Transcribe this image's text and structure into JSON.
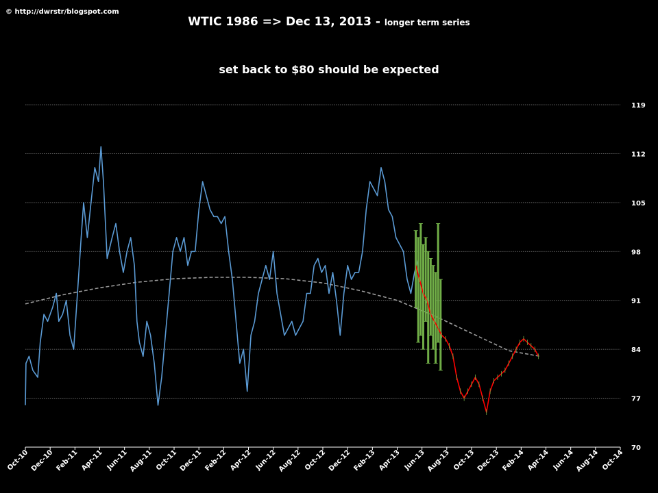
{
  "header": {
    "copyright": "© http://dwrstr/blogspot.com",
    "title_main": "WTIC 1986 => Dec 13, 2013 - ",
    "title_suffix": "longer term series",
    "subtitle": "set back to $80 should  be expected"
  },
  "colors": {
    "background": "#000000",
    "actual": "#5b9bd5",
    "projection_range": "#70ad47",
    "projection_median": "#ff0000",
    "long_term_trend": "#9a9a9a",
    "gridline": "#808080"
  },
  "chart_data": {
    "type": "line",
    "title": "WTIC 1986 => Dec 13, 2013 - longer term series",
    "subtitle": "set back to $80 should  be expected",
    "xlabel": "",
    "ylabel": "",
    "grid": true,
    "y_axis_side": "right",
    "ylim": [
      70,
      119
    ],
    "yticks": [
      70,
      77,
      84,
      91,
      98,
      105,
      112,
      119
    ],
    "xlim": [
      "2010-10",
      "2014-10"
    ],
    "xticks": [
      "Oct-10",
      "Dec-10",
      "Feb-11",
      "Apr-11",
      "Jun-11",
      "Aug-11",
      "Oct-11",
      "Dec-11",
      "Feb-12",
      "Apr-12",
      "Jun-12",
      "Aug-12",
      "Oct-12",
      "Dec-12",
      "Feb-13",
      "Apr-13",
      "Jun-13",
      "Aug-13",
      "Oct-13",
      "Dec-13",
      "Feb-14",
      "Apr-14",
      "Jun-14",
      "Aug-14",
      "Oct-14"
    ],
    "series": [
      {
        "style": "line",
        "color": "#5b9bd5",
        "x_unit": "months since Oct-10",
        "points": [
          [
            0.0,
            76
          ],
          [
            0.05,
            82
          ],
          [
            0.3,
            83
          ],
          [
            0.6,
            81
          ],
          [
            1.0,
            80
          ],
          [
            1.2,
            85
          ],
          [
            1.5,
            89
          ],
          [
            1.8,
            88
          ],
          [
            2.2,
            90
          ],
          [
            2.5,
            92
          ],
          [
            2.7,
            88
          ],
          [
            3.0,
            89
          ],
          [
            3.3,
            91
          ],
          [
            3.6,
            86
          ],
          [
            3.9,
            84
          ],
          [
            4.2,
            92
          ],
          [
            4.5,
            100
          ],
          [
            4.7,
            105
          ],
          [
            5.0,
            100
          ],
          [
            5.3,
            105
          ],
          [
            5.6,
            110
          ],
          [
            5.9,
            108
          ],
          [
            6.1,
            113
          ],
          [
            6.3,
            108
          ],
          [
            6.6,
            97
          ],
          [
            7.0,
            100
          ],
          [
            7.3,
            102
          ],
          [
            7.6,
            98
          ],
          [
            7.9,
            95
          ],
          [
            8.2,
            98
          ],
          [
            8.5,
            100
          ],
          [
            8.8,
            96
          ],
          [
            9.0,
            88
          ],
          [
            9.2,
            85
          ],
          [
            9.5,
            83
          ],
          [
            9.8,
            88
          ],
          [
            10.1,
            86
          ],
          [
            10.4,
            82
          ],
          [
            10.7,
            76
          ],
          [
            11.0,
            80
          ],
          [
            11.3,
            86
          ],
          [
            11.6,
            92
          ],
          [
            11.9,
            98
          ],
          [
            12.2,
            100
          ],
          [
            12.5,
            98
          ],
          [
            12.8,
            100
          ],
          [
            13.1,
            96
          ],
          [
            13.4,
            98
          ],
          [
            13.7,
            98
          ],
          [
            14.0,
            104
          ],
          [
            14.3,
            108
          ],
          [
            14.6,
            106
          ],
          [
            14.9,
            104
          ],
          [
            15.2,
            103
          ],
          [
            15.5,
            103
          ],
          [
            15.8,
            102
          ],
          [
            16.1,
            103
          ],
          [
            16.4,
            98
          ],
          [
            16.7,
            94
          ],
          [
            17.0,
            88
          ],
          [
            17.3,
            82
          ],
          [
            17.6,
            84
          ],
          [
            17.9,
            78
          ],
          [
            18.2,
            86
          ],
          [
            18.5,
            88
          ],
          [
            18.8,
            92
          ],
          [
            19.1,
            94
          ],
          [
            19.4,
            96
          ],
          [
            19.7,
            94
          ],
          [
            20.0,
            98
          ],
          [
            20.3,
            92
          ],
          [
            20.6,
            89
          ],
          [
            20.9,
            86
          ],
          [
            21.2,
            87
          ],
          [
            21.5,
            88
          ],
          [
            21.8,
            86
          ],
          [
            22.1,
            87
          ],
          [
            22.4,
            88
          ],
          [
            22.7,
            92
          ],
          [
            23.0,
            92
          ],
          [
            23.3,
            96
          ],
          [
            23.6,
            97
          ],
          [
            23.9,
            95
          ],
          [
            24.2,
            96
          ],
          [
            24.5,
            92
          ],
          [
            24.8,
            95
          ],
          [
            25.1,
            91
          ],
          [
            25.4,
            86
          ],
          [
            25.7,
            92
          ],
          [
            26.0,
            96
          ],
          [
            26.3,
            94
          ],
          [
            26.6,
            95
          ],
          [
            26.9,
            95
          ],
          [
            27.2,
            98
          ],
          [
            27.5,
            104
          ],
          [
            27.8,
            108
          ],
          [
            28.1,
            107
          ],
          [
            28.4,
            106
          ],
          [
            28.7,
            110
          ],
          [
            29.0,
            108
          ],
          [
            29.3,
            104
          ],
          [
            29.6,
            103
          ],
          [
            29.9,
            100
          ],
          [
            30.2,
            99
          ],
          [
            30.5,
            98
          ],
          [
            30.8,
            94
          ],
          [
            31.1,
            92
          ],
          [
            31.4,
            95
          ],
          [
            31.7,
            97
          ]
        ]
      },
      {
        "style": "range-bars",
        "color": "#70ad47",
        "x_unit": "months since Oct-10",
        "bars": [
          [
            31.5,
            90,
            101
          ],
          [
            31.7,
            85,
            100
          ],
          [
            31.9,
            86,
            102
          ],
          [
            32.1,
            84,
            99
          ],
          [
            32.3,
            88,
            100
          ],
          [
            32.5,
            82,
            98
          ],
          [
            32.7,
            86,
            97
          ],
          [
            32.9,
            84,
            96
          ],
          [
            33.1,
            82,
            95
          ],
          [
            33.3,
            85,
            102
          ],
          [
            33.5,
            81,
            94
          ]
        ]
      },
      {
        "style": "line",
        "color": "#ff0000",
        "x_unit": "months since Oct-10",
        "points": [
          [
            31.5,
            96
          ],
          [
            31.8,
            94
          ],
          [
            32.1,
            92
          ],
          [
            32.4,
            91
          ],
          [
            32.7,
            89
          ],
          [
            33.0,
            88
          ],
          [
            33.3,
            87
          ],
          [
            33.6,
            86
          ],
          [
            33.9,
            85.5
          ],
          [
            34.2,
            84.5
          ],
          [
            34.5,
            83
          ],
          [
            34.8,
            80
          ],
          [
            35.1,
            78
          ],
          [
            35.4,
            77
          ],
          [
            35.7,
            78
          ],
          [
            36.0,
            79
          ],
          [
            36.3,
            80
          ],
          [
            36.6,
            79
          ],
          [
            36.9,
            77
          ],
          [
            37.2,
            75
          ],
          [
            37.5,
            78
          ],
          [
            37.8,
            79.5
          ],
          [
            38.1,
            80
          ],
          [
            38.4,
            80.5
          ],
          [
            38.7,
            81
          ],
          [
            39.0,
            82
          ],
          [
            39.3,
            83
          ],
          [
            39.6,
            84
          ],
          [
            39.9,
            85
          ],
          [
            40.2,
            85.5
          ],
          [
            40.5,
            85
          ],
          [
            40.8,
            84.5
          ],
          [
            41.1,
            84
          ],
          [
            41.4,
            83
          ]
        ]
      },
      {
        "style": "dashed",
        "color": "#9a9a9a",
        "x_unit": "months since Oct-10",
        "points": [
          [
            0,
            90.5
          ],
          [
            3,
            91.8
          ],
          [
            6,
            92.8
          ],
          [
            9,
            93.6
          ],
          [
            12,
            94.1
          ],
          [
            15,
            94.3
          ],
          [
            18,
            94.3
          ],
          [
            21,
            94.1
          ],
          [
            24,
            93.5
          ],
          [
            27,
            92.4
          ],
          [
            30,
            91
          ],
          [
            33,
            88.8
          ],
          [
            36,
            86.3
          ],
          [
            39,
            83.8
          ],
          [
            41.5,
            83
          ]
        ]
      }
    ]
  }
}
